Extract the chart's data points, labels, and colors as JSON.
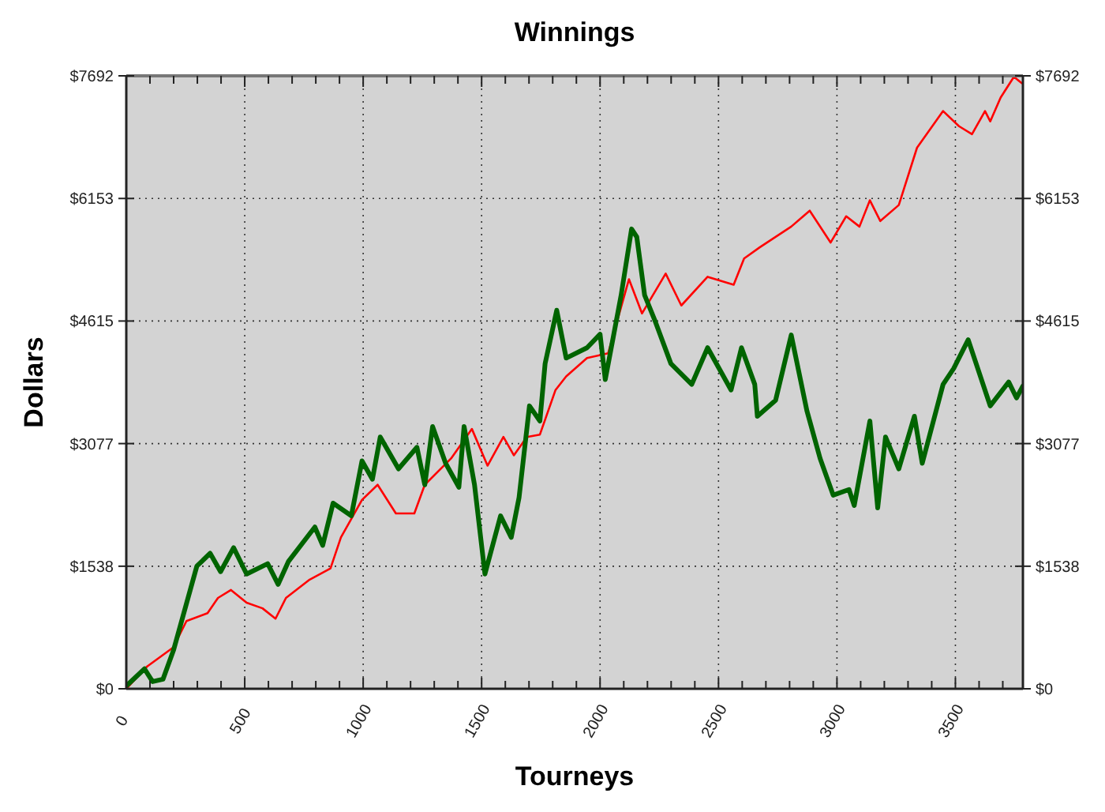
{
  "chart_data": {
    "type": "line",
    "title": "Winnings",
    "xlabel": "Tourneys",
    "ylabel": "Dollars",
    "xlim": [
      0,
      3785
    ],
    "xticks": [
      0,
      {
        "value": 100,
        "label": null
      },
      {
        "value": 200,
        "label": null
      },
      {
        "value": 300,
        "label": null
      },
      {
        "value": 400,
        "label": null
      },
      500,
      {
        "value": 600,
        "label": null
      },
      {
        "value": 700,
        "label": null
      },
      {
        "value": 800,
        "label": null
      },
      {
        "value": 900,
        "label": null
      },
      1000,
      {
        "value": 1100,
        "label": null
      },
      {
        "value": 1200,
        "label": null
      },
      {
        "value": 1300,
        "label": null
      },
      {
        "value": 1400,
        "label": null
      },
      1500,
      {
        "value": 1600,
        "label": null
      },
      {
        "value": 1700,
        "label": null
      },
      {
        "value": 1800,
        "label": null
      },
      {
        "value": 1900,
        "label": null
      },
      2000,
      {
        "value": 2100,
        "label": null
      },
      {
        "value": 2200,
        "label": null
      },
      {
        "value": 2300,
        "label": null
      },
      {
        "value": 2400,
        "label": null
      },
      2500,
      {
        "value": 2600,
        "label": null
      },
      {
        "value": 2700,
        "label": null
      },
      {
        "value": 2800,
        "label": null
      },
      {
        "value": 2900,
        "label": null
      },
      3000,
      {
        "value": 3100,
        "label": null
      },
      {
        "value": 3200,
        "label": null
      },
      {
        "value": 3300,
        "label": null
      },
      {
        "value": 3400,
        "label": null
      },
      3500,
      {
        "value": 3600,
        "label": null
      },
      {
        "value": 3700,
        "label": null
      }
    ],
    "ylim": [
      0,
      7692
    ],
    "yticks": [
      {
        "value": 0,
        "label": "$0"
      },
      {
        "value": 1538,
        "label": "$1538"
      },
      {
        "value": 3077,
        "label": "$3077"
      },
      {
        "value": 4615,
        "label": "$4615"
      },
      {
        "value": 6153,
        "label": "$6153"
      },
      {
        "value": 7692,
        "label": "$7692"
      }
    ],
    "y2lim": [
      0,
      7692
    ],
    "y2ticks": [
      {
        "value": 0,
        "label": "$0"
      },
      {
        "value": 1538,
        "label": "$1538"
      },
      {
        "value": 3077,
        "label": "$3077"
      },
      {
        "value": 4615,
        "label": "$4615"
      },
      {
        "value": 6153,
        "label": "$6153"
      },
      {
        "value": 7692,
        "label": "$7692"
      }
    ],
    "grid": true,
    "marker": "none",
    "line_style": "solid",
    "series": [
      {
        "color": "#ff0000",
        "x": [
          0,
          88,
          199,
          254,
          343,
          387,
          442,
          508,
          575,
          630,
          674,
          774,
          862,
          906,
          995,
          1061,
          1138,
          1216,
          1260,
          1371,
          1459,
          1525,
          1592,
          1636,
          1691,
          1746,
          1812,
          1857,
          1945,
          2034,
          2122,
          2177,
          2277,
          2343,
          2454,
          2564,
          2608,
          2674,
          2807,
          2885,
          2973,
          3039,
          3095,
          3139,
          3183,
          3261,
          3338,
          3448,
          3515,
          3570,
          3625,
          3647,
          3691,
          3747,
          3780
        ],
        "values": [
          0,
          280,
          520,
          850,
          950,
          1140,
          1240,
          1080,
          1010,
          880,
          1140,
          1370,
          1510,
          1900,
          2370,
          2560,
          2200,
          2200,
          2560,
          2890,
          3260,
          2800,
          3160,
          2930,
          3160,
          3190,
          3750,
          3920,
          4150,
          4210,
          5140,
          4710,
          5210,
          4810,
          5170,
          5070,
          5400,
          5540,
          5800,
          6000,
          5600,
          5930,
          5800,
          6130,
          5870,
          6070,
          6790,
          7250,
          7060,
          6960,
          7250,
          7120,
          7420,
          7680,
          7600
        ]
      },
      {
        "color": "#006400",
        "x": [
          5,
          77,
          111,
          155,
          199,
          298,
          354,
          398,
          453,
          508,
          597,
          641,
          685,
          796,
          829,
          873,
          950,
          995,
          1039,
          1072,
          1149,
          1227,
          1260,
          1293,
          1348,
          1404,
          1426,
          1470,
          1514,
          1580,
          1625,
          1658,
          1702,
          1746,
          1768,
          1817,
          1857,
          1945,
          2000,
          2022,
          2089,
          2133,
          2155,
          2188,
          2233,
          2299,
          2387,
          2454,
          2553,
          2597,
          2653,
          2664,
          2741,
          2807,
          2873,
          2929,
          2984,
          3051,
          3073,
          3139,
          3172,
          3205,
          3261,
          3327,
          3360,
          3448,
          3493,
          3554,
          3647,
          3725,
          3758,
          3785
        ],
        "values": [
          50,
          250,
          90,
          120,
          480,
          1540,
          1700,
          1470,
          1770,
          1440,
          1570,
          1310,
          1600,
          2030,
          1800,
          2330,
          2170,
          2860,
          2630,
          3160,
          2760,
          3030,
          2560,
          3290,
          2830,
          2530,
          3290,
          2560,
          1440,
          2170,
          1900,
          2400,
          3550,
          3360,
          4080,
          4750,
          4150,
          4280,
          4450,
          3880,
          4940,
          5770,
          5670,
          4940,
          4610,
          4080,
          3820,
          4280,
          3750,
          4280,
          3820,
          3420,
          3620,
          4440,
          3490,
          2890,
          2430,
          2500,
          2300,
          3360,
          2270,
          3160,
          2760,
          3420,
          2830,
          3820,
          4020,
          4380,
          3550,
          3850,
          3650,
          3800
        ]
      }
    ]
  }
}
